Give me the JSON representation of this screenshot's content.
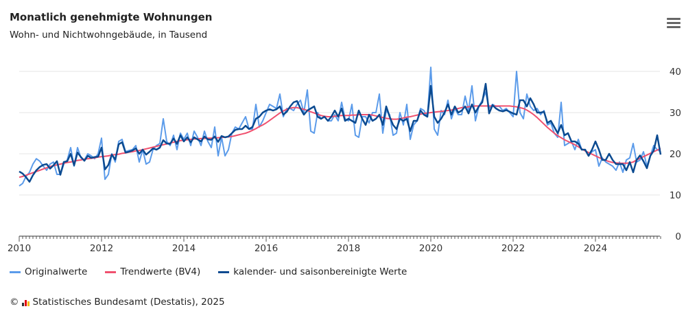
{
  "header": {
    "title": "Monatlich genehmigte Wohnungen",
    "subtitle": "Wohn- und Nichtwohngebäude, in Tausend"
  },
  "footer": {
    "copyright": "©",
    "source": "Statistisches Bundesamt (Destatis), 2025"
  },
  "colors": {
    "original": "#5b9bea",
    "trend": "#f0506e",
    "adjusted": "#0b4a90"
  },
  "chart_data": {
    "type": "line",
    "title": "Monatlich genehmigte Wohnungen",
    "ylabel": "in Tausend",
    "ylim": [
      0,
      40
    ],
    "yticks": [
      "0",
      "10",
      "20",
      "30",
      "40"
    ],
    "xticks": [
      "2010",
      "2012",
      "2014",
      "2016",
      "2018",
      "2020",
      "2022",
      "2024"
    ],
    "x_start": "2010-01",
    "frequency": "monthly",
    "legend": "bottom",
    "series": [
      {
        "name": "Originalwerte",
        "values": [
          12.2,
          12.8,
          14.5,
          15.5,
          17.5,
          18.8,
          18.2,
          17.0,
          16.0,
          17.5,
          18.0,
          15.0,
          15.0,
          17.5,
          18.5,
          21.5,
          17.0,
          21.5,
          19.0,
          18.5,
          20.0,
          19.5,
          18.8,
          20.0,
          23.8,
          13.8,
          15.0,
          20.0,
          18.0,
          23.0,
          23.5,
          20.5,
          20.8,
          21.0,
          22.0,
          18.0,
          21.0,
          17.5,
          18.0,
          21.0,
          22.0,
          22.5,
          28.5,
          23.0,
          22.0,
          24.5,
          21.0,
          25.0,
          23.5,
          25.0,
          22.0,
          25.5,
          24.0,
          22.0,
          25.5,
          23.0,
          21.5,
          26.5,
          19.5,
          24.0,
          19.5,
          21.0,
          25.0,
          26.5,
          26.0,
          27.5,
          29.0,
          26.0,
          26.0,
          32.0,
          26.5,
          28.0,
          30.0,
          32.0,
          31.5,
          31.0,
          34.5,
          29.0,
          31.0,
          31.0,
          30.5,
          32.0,
          33.0,
          30.0,
          35.5,
          25.5,
          25.0,
          30.0,
          28.5,
          29.0,
          28.0,
          28.0,
          29.5,
          28.0,
          32.5,
          28.5,
          28.0,
          32.0,
          24.5,
          24.0,
          29.0,
          29.0,
          27.5,
          30.0,
          30.0,
          34.5,
          25.0,
          30.5,
          29.5,
          24.5,
          25.0,
          30.0,
          27.0,
          32.0,
          23.5,
          27.0,
          28.0,
          31.0,
          30.5,
          29.0,
          41.0,
          26.0,
          24.5,
          30.5,
          29.5,
          33.0,
          28.5,
          31.0,
          29.5,
          29.5,
          34.0,
          30.5,
          36.5,
          28.0,
          31.5,
          33.0,
          35.0,
          31.0,
          32.0,
          31.5,
          31.5,
          30.5,
          31.0,
          30.0,
          29.0,
          40.0,
          30.0,
          28.5,
          34.5,
          31.5,
          30.5,
          31.0,
          29.5,
          30.5,
          27.0,
          27.5,
          25.0,
          24.0,
          32.5,
          22.0,
          22.5,
          23.0,
          21.0,
          23.5,
          21.0,
          21.0,
          19.5,
          20.5,
          21.0,
          17.0,
          19.0,
          18.0,
          17.5,
          17.0,
          16.0,
          18.0,
          15.5,
          18.5,
          19.0,
          22.5,
          18.0,
          18.5,
          20.5,
          17.0,
          19.5,
          22.0,
          21.0,
          20.5
        ]
      },
      {
        "name": "Trendwerte (BV4)",
        "values": [
          14.3,
          14.5,
          14.8,
          15.1,
          15.4,
          15.7,
          16.0,
          16.3,
          16.6,
          16.9,
          17.1,
          17.3,
          17.5,
          17.7,
          17.9,
          18.0,
          18.2,
          18.4,
          18.5,
          18.7,
          18.8,
          18.9,
          19.0,
          19.2,
          19.3,
          19.4,
          19.5,
          19.7,
          19.8,
          19.9,
          20.1,
          20.2,
          20.4,
          20.5,
          20.7,
          20.8,
          21.0,
          21.2,
          21.4,
          21.6,
          21.8,
          22.0,
          22.2,
          22.4,
          22.6,
          22.8,
          23.0,
          23.2,
          23.3,
          23.4,
          23.5,
          23.6,
          23.6,
          23.7,
          23.7,
          23.8,
          23.8,
          23.9,
          23.9,
          24.0,
          24.0,
          24.1,
          24.2,
          24.4,
          24.6,
          24.8,
          25.0,
          25.3,
          25.7,
          26.1,
          26.6,
          27.0,
          27.5,
          28.1,
          28.7,
          29.3,
          29.9,
          30.4,
          30.8,
          31.1,
          31.2,
          31.2,
          31.0,
          30.8,
          30.5,
          30.2,
          29.9,
          29.6,
          29.3,
          29.1,
          29.0,
          29.0,
          29.1,
          29.2,
          29.3,
          29.3,
          29.3,
          29.4,
          29.4,
          29.5,
          29.5,
          29.5,
          29.5,
          29.4,
          29.2,
          29.0,
          28.8,
          28.6,
          28.5,
          28.4,
          28.4,
          28.5,
          28.7,
          28.9,
          29.0,
          29.2,
          29.4,
          29.6,
          29.8,
          29.9,
          30.0,
          30.1,
          30.2,
          30.3,
          30.4,
          30.5,
          30.6,
          30.8,
          31.0,
          31.2,
          31.3,
          31.4,
          31.5,
          31.6,
          31.6,
          31.6,
          31.6,
          31.6,
          31.6,
          31.6,
          31.6,
          31.6,
          31.6,
          31.6,
          31.5,
          31.4,
          31.2,
          31.0,
          30.6,
          30.1,
          29.5,
          28.8,
          28.0,
          27.2,
          26.4,
          25.7,
          25.0,
          24.4,
          23.9,
          23.4,
          23.0,
          22.6,
          22.2,
          21.7,
          21.2,
          20.7,
          20.3,
          19.9,
          19.5,
          19.1,
          18.7,
          18.4,
          18.1,
          17.9,
          17.8,
          17.7,
          17.7,
          17.7,
          17.8,
          18.0,
          18.5,
          18.9,
          19.3,
          19.7,
          20.1,
          20.5,
          20.9,
          21.3
        ]
      },
      {
        "name": "kalender- und saisonbereinigte Werte",
        "values": [
          15.7,
          15.2,
          14.3,
          13.2,
          14.8,
          16.0,
          16.8,
          17.3,
          17.5,
          16.4,
          17.2,
          18.2,
          14.9,
          18.0,
          18.2,
          20.0,
          17.2,
          20.3,
          19.2,
          18.3,
          19.5,
          19.0,
          19.2,
          19.3,
          21.5,
          16.2,
          17.3,
          19.8,
          18.6,
          22.3,
          22.8,
          20.3,
          20.5,
          20.8,
          21.3,
          20.0,
          21.0,
          19.8,
          20.5,
          21.3,
          21.0,
          21.5,
          23.3,
          22.5,
          22.4,
          23.7,
          22.4,
          24.5,
          23.0,
          24.0,
          22.8,
          24.0,
          23.5,
          23.0,
          24.2,
          23.5,
          23.4,
          24.2,
          22.9,
          24.3,
          24.0,
          24.2,
          25.0,
          25.8,
          26.0,
          26.0,
          26.8,
          26.0,
          26.5,
          28.5,
          29.0,
          30.0,
          30.5,
          30.8,
          30.5,
          30.8,
          31.5,
          29.5,
          30.2,
          31.5,
          32.5,
          32.8,
          31.0,
          29.5,
          30.5,
          31.0,
          31.5,
          29.0,
          28.5,
          29.0,
          28.0,
          29.0,
          30.5,
          29.0,
          31.0,
          28.0,
          28.5,
          28.0,
          27.5,
          30.5,
          28.5,
          27.0,
          29.5,
          28.0,
          28.5,
          29.5,
          27.0,
          31.5,
          29.0,
          27.0,
          26.0,
          28.5,
          28.0,
          28.5,
          25.5,
          28.0,
          28.0,
          30.5,
          29.5,
          29.0,
          36.5,
          29.0,
          27.5,
          28.5,
          30.0,
          32.0,
          29.5,
          31.5,
          30.0,
          30.5,
          31.5,
          29.8,
          32.0,
          30.0,
          31.5,
          32.5,
          37.0,
          29.8,
          31.8,
          31.0,
          30.5,
          30.3,
          30.6,
          30.2,
          29.8,
          29.5,
          33.0,
          33.0,
          31.5,
          33.5,
          32.0,
          30.0,
          30.0,
          30.2,
          27.5,
          28.0,
          26.5,
          25.0,
          27.0,
          24.5,
          25.0,
          23.0,
          23.0,
          22.5,
          21.0,
          21.0,
          19.5,
          21.0,
          23.0,
          21.0,
          18.5,
          18.5,
          20.0,
          18.5,
          17.5,
          17.5,
          17.5,
          16.0,
          18.0,
          15.5,
          18.5,
          19.6,
          18.2,
          16.5,
          19.5,
          20.8,
          24.5,
          19.8
        ]
      }
    ]
  }
}
